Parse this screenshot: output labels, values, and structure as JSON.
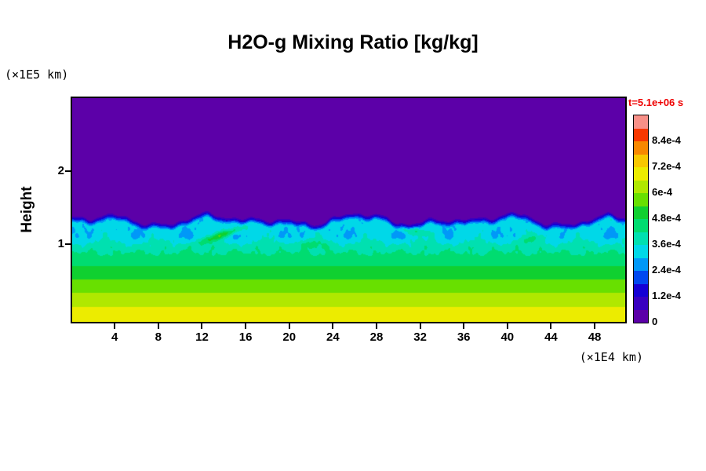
{
  "title": "H2O-g Mixing Ratio [kg/kg]",
  "y_unit_label": "(×1E5 km)",
  "x_unit_label": "(×1E4 km)",
  "y_axis_label": "Height",
  "time_label": "t=5.1e+06 s",
  "time_label_color": "#ee0000",
  "frame_color": "#000000",
  "axes": {
    "x": {
      "min": 0.1,
      "max": 50.8,
      "ticks": [
        4,
        8,
        12,
        16,
        20,
        24,
        28,
        32,
        36,
        40,
        44,
        48
      ]
    },
    "y": {
      "min": -0.07,
      "max": 3.0,
      "ticks": [
        1,
        2
      ]
    }
  },
  "colorbar": {
    "min": 0,
    "max": 0.00096,
    "tick_labels": [
      "0",
      "1.2e-4",
      "2.4e-4",
      "3.6e-4",
      "4.8e-4",
      "6e-4",
      "7.2e-4",
      "8.4e-4"
    ],
    "tick_values": [
      0,
      0.00012,
      0.00024,
      0.00036,
      0.00048,
      0.0006,
      0.00072,
      0.00084
    ],
    "colors": [
      "#5c00a8",
      "#3800c0",
      "#1400d4",
      "#0048f0",
      "#0098f8",
      "#00d8e8",
      "#00e0b0",
      "#00dc70",
      "#10d030",
      "#68e000",
      "#b0e800",
      "#ecec00",
      "#f8c800",
      "#f88800",
      "#f83800",
      "#f89088"
    ]
  },
  "chart_data": {
    "type": "heatmap",
    "title": "H2O-g Mixing Ratio [kg/kg]",
    "xlabel": "(×1E4 km)",
    "ylabel": "Height (×1E5 km)",
    "time": "t=5.1e+06 s",
    "field": "H2O gas mixing ratio",
    "units": "kg/kg",
    "x_range": [
      0.1,
      50.8
    ],
    "h_range": [
      -0.07,
      3.0
    ],
    "value_min": 0,
    "value_max": 0.00096,
    "level_step": 6e-05,
    "profile": {
      "heights": [
        0,
        0.2,
        0.45,
        0.7,
        0.95,
        1.1,
        3.0
      ],
      "values": [
        0.0007,
        0.00064,
        0.00056,
        0.00048,
        0.000395,
        0.00032,
        0.0003
      ]
    },
    "interface": {
      "base": 1.36,
      "thickness": 0.1,
      "waves": [
        [
          0.05,
          12.5,
          0.8
        ],
        [
          0.035,
          7.3,
          3.9
        ],
        [
          0.025,
          4.1,
          1.7
        ],
        [
          0.015,
          2.3,
          5.6
        ],
        [
          0.008,
          1.27,
          2.4
        ]
      ]
    },
    "noise": {
      "amp": 6e-05,
      "fade_zone": [
        0.75,
        0.95
      ],
      "components": [
        [
          0.5,
          1.3,
          0.4,
          9,
          1.1
        ],
        [
          0.3,
          2.9,
          2.2,
          15,
          0.3
        ],
        [
          0.2,
          6.1,
          4.0,
          25,
          2.5
        ],
        [
          0.15,
          11.3,
          1.6,
          40,
          4.2
        ]
      ]
    },
    "plumes": [
      [
        13.8,
        1.12,
        2.0,
        0.05,
        0.05,
        0.00018
      ],
      [
        31.5,
        1.17,
        1.6,
        0.05,
        -0.03,
        8e-05
      ],
      [
        42.5,
        1.08,
        1.8,
        0.06,
        0.03,
        7e-05
      ],
      [
        22.0,
        1.0,
        1.5,
        0.06,
        0.0,
        6e-05
      ]
    ]
  }
}
